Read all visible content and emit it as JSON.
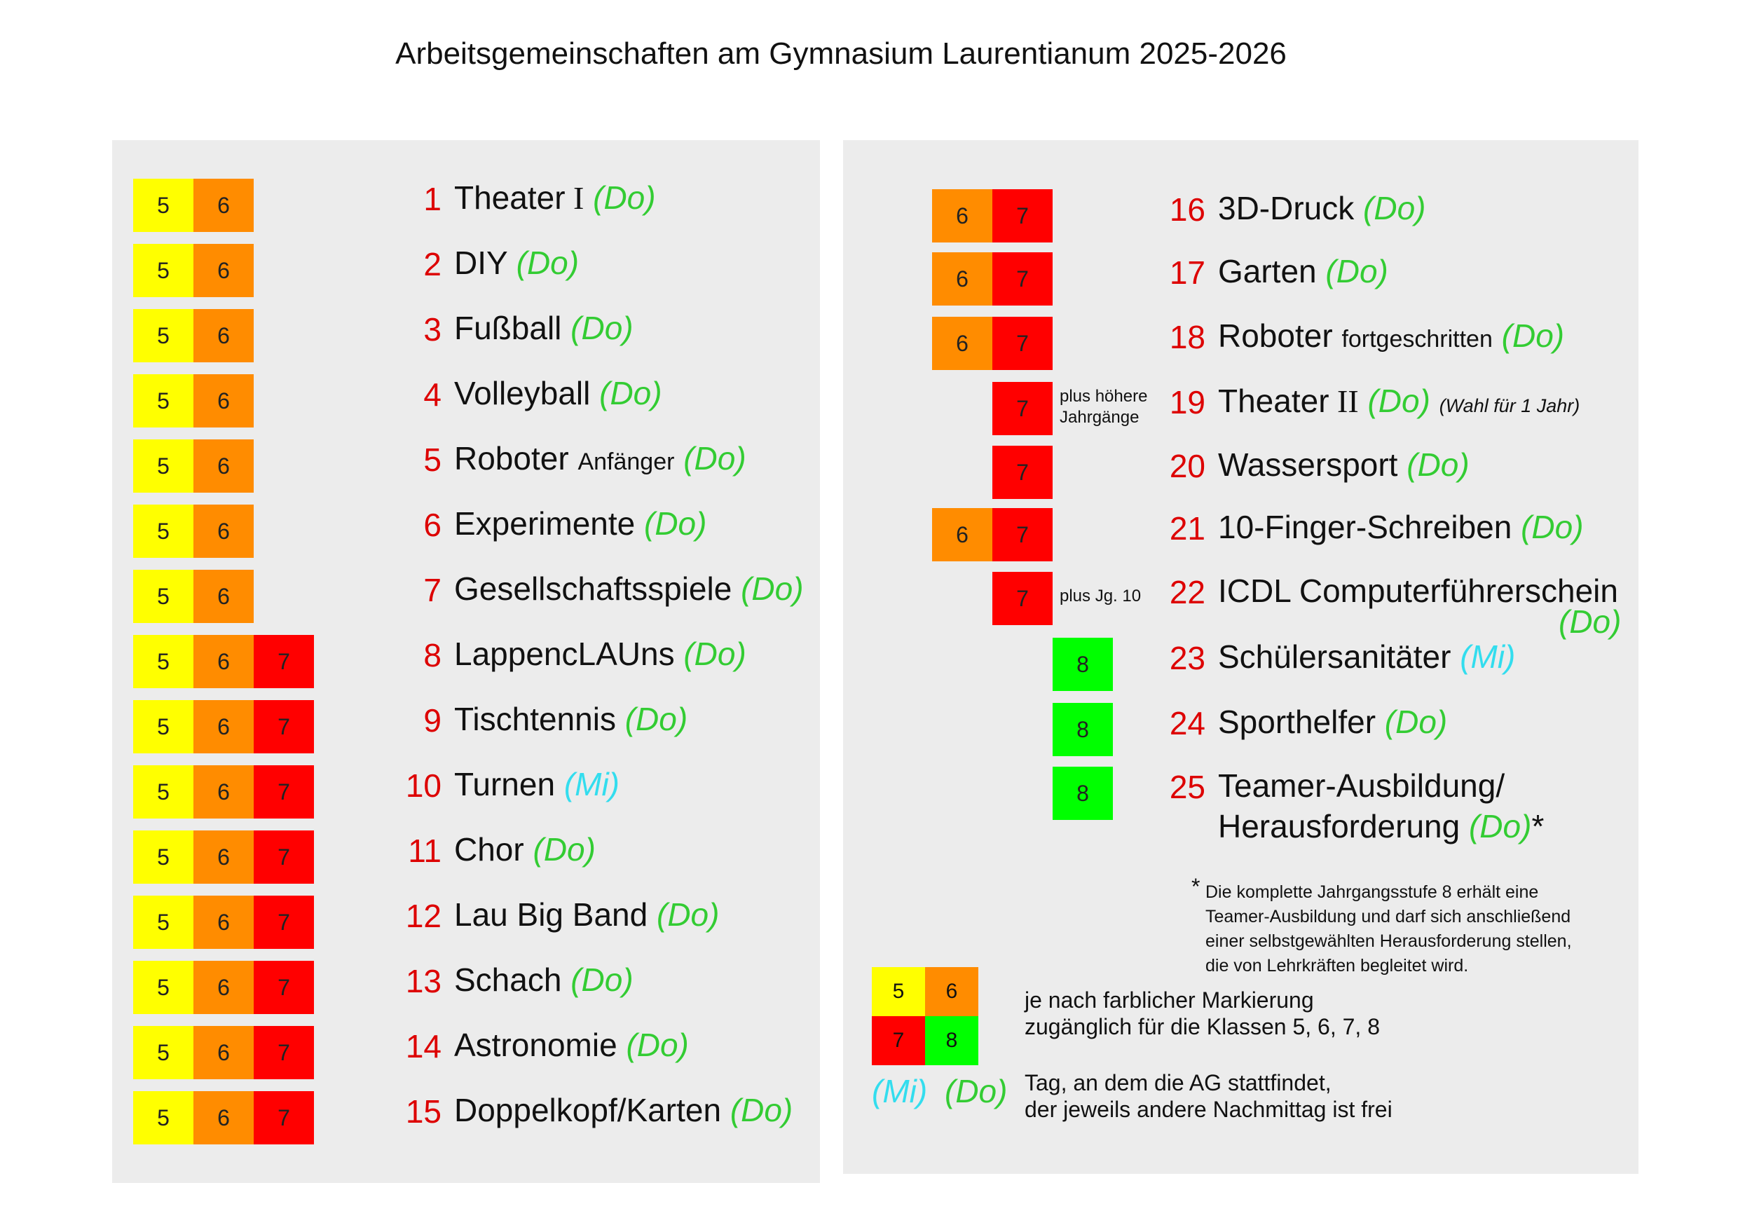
{
  "title": "Arbeitsgemeinschaften am Gymnasium Laurentianum 2025-2026",
  "colors": {
    "grade5": "#ffff00",
    "grade6": "#ff8c00",
    "grade7": "#ff0000",
    "grade8": "#00ff00",
    "day_do": "#33cc33",
    "day_mi": "#33ddee",
    "number": "#dd0000"
  },
  "left_items": [
    {
      "num": "1",
      "name": "Theater",
      "roman": "I",
      "day": "(Do)",
      "grades": [
        "5",
        "6"
      ]
    },
    {
      "num": "2",
      "name": "DIY",
      "day": "(Do)",
      "grades": [
        "5",
        "6"
      ]
    },
    {
      "num": "3",
      "name": "Fußball",
      "day": "(Do)",
      "grades": [
        "5",
        "6"
      ]
    },
    {
      "num": "4",
      "name": "Volleyball",
      "day": "(Do)",
      "grades": [
        "5",
        "6"
      ]
    },
    {
      "num": "5",
      "name": "Roboter",
      "sub": "Anfänger",
      "day": "(Do)",
      "grades": [
        "5",
        "6"
      ]
    },
    {
      "num": "6",
      "name": "Experimente",
      "day": "(Do)",
      "grades": [
        "5",
        "6"
      ]
    },
    {
      "num": "7",
      "name": "Gesellschaftsspiele",
      "day": "(Do)",
      "grades": [
        "5",
        "6"
      ]
    },
    {
      "num": "8",
      "name": "LappencLAUns",
      "day": "(Do)",
      "grades": [
        "5",
        "6",
        "7"
      ]
    },
    {
      "num": "9",
      "name": "Tischtennis",
      "day": "(Do)",
      "grades": [
        "5",
        "6",
        "7"
      ]
    },
    {
      "num": "10",
      "name": "Turnen",
      "day": "(Mi)",
      "grades": [
        "5",
        "6",
        "7"
      ]
    },
    {
      "num": "11",
      "name": "Chor",
      "day": "(Do)",
      "grades": [
        "5",
        "6",
        "7"
      ]
    },
    {
      "num": "12",
      "name": "Lau Big Band",
      "day": "(Do)",
      "grades": [
        "5",
        "6",
        "7"
      ]
    },
    {
      "num": "13",
      "name": "Schach",
      "day": "(Do)",
      "grades": [
        "5",
        "6",
        "7"
      ]
    },
    {
      "num": "14",
      "name": "Astronomie",
      "day": "(Do)",
      "grades": [
        "5",
        "6",
        "7"
      ]
    },
    {
      "num": "15",
      "name": "Doppelkopf/Karten",
      "day": "(Do)",
      "grades": [
        "5",
        "6",
        "7"
      ]
    }
  ],
  "right_items": [
    {
      "num": "16",
      "name": "3D-Druck",
      "day": "(Do)",
      "grades": [
        "6",
        "7"
      ]
    },
    {
      "num": "17",
      "name": "Garten",
      "day": "(Do)",
      "grades": [
        "6",
        "7"
      ]
    },
    {
      "num": "18",
      "name": "Roboter",
      "sub": "fortgeschritten",
      "day": "(Do)",
      "grades": [
        "6",
        "7"
      ]
    },
    {
      "num": "19",
      "name": "Theater",
      "roman": "II",
      "day": "(Do)",
      "extra": "(Wahl für 1 Jahr)",
      "grades": [
        "7"
      ],
      "note": "plus höhere Jahrgänge"
    },
    {
      "num": "20",
      "name": "Wassersport",
      "day": "(Do)",
      "grades": [
        "7"
      ]
    },
    {
      "num": "21",
      "name": "10-Finger-Schreiben",
      "day": "(Do)",
      "grades": [
        "6",
        "7"
      ]
    },
    {
      "num": "22",
      "name": "ICDL Computerführerschein",
      "day": "(Do)",
      "grades": [
        "7"
      ],
      "note": "plus Jg. 10"
    },
    {
      "num": "23",
      "name": "Schülersanitäter",
      "day": "(Mi)",
      "grades": [
        "8"
      ]
    },
    {
      "num": "24",
      "name": "Sporthelfer",
      "day": "(Do)",
      "grades": [
        "8"
      ]
    },
    {
      "num": "25",
      "name": "Teamer-Ausbildung/",
      "name2": "Herausforderung",
      "day": "(Do)",
      "star": "*",
      "grades": [
        "8"
      ]
    }
  ],
  "footnote": {
    "star": "*",
    "lines": [
      "Die komplette Jahrgangsstufe 8 erhält eine",
      "Teamer-Ausbildung und darf sich anschließend",
      "einer selbstgewählten Herausforderung stellen,",
      "die von Lehrkräften begleitet wird."
    ]
  },
  "legend": {
    "grades": [
      "5",
      "6",
      "7",
      "8"
    ],
    "grade_text": [
      "je nach farblicher Markierung",
      "zugänglich für die Klassen 5, 6, 7, 8"
    ],
    "day_mi": "(Mi)",
    "day_do": "(Do)",
    "day_text": [
      "Tag, an dem die AG stattfindet,",
      "der jeweils andere Nachmittag ist frei"
    ]
  }
}
